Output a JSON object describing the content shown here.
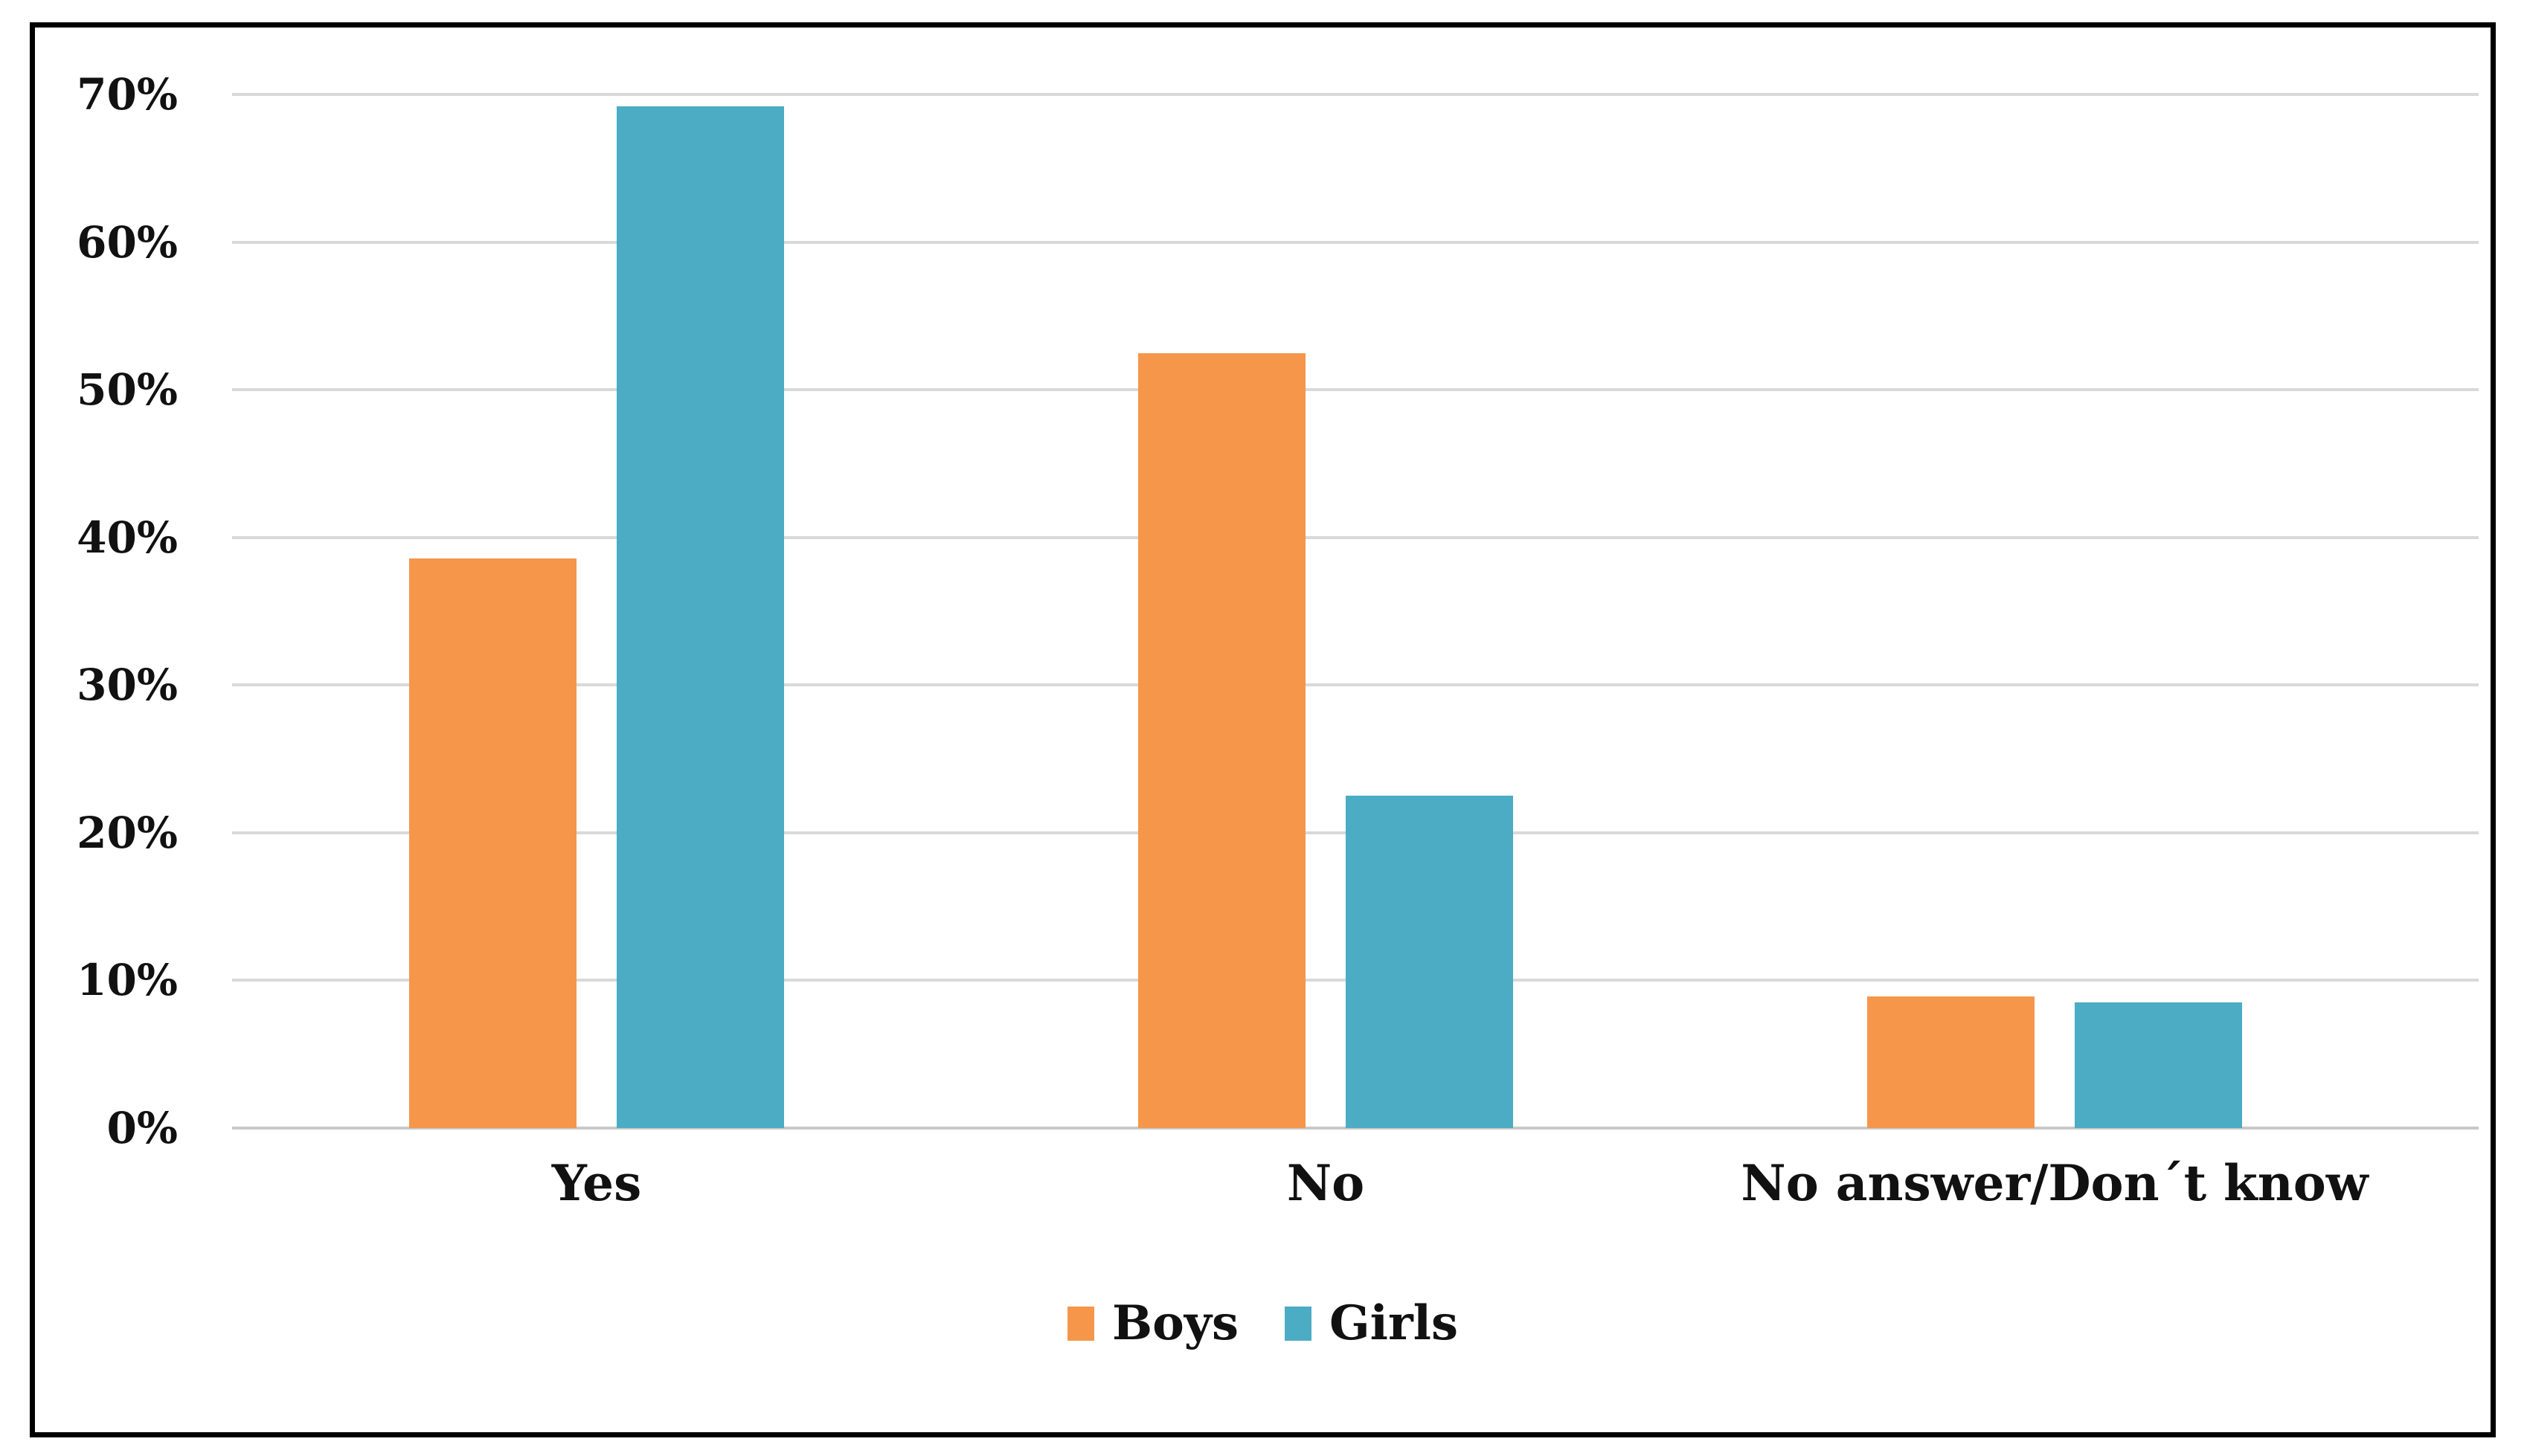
{
  "chart_data": {
    "type": "bar",
    "title": "",
    "categories": [
      "Yes",
      "No",
      "No answer/Don´t know"
    ],
    "series": [
      {
        "name": "Boys",
        "color": "#F5964B",
        "values": [
          38.6,
          52.5,
          8.9
        ]
      },
      {
        "name": "Girls",
        "color": "#4BACC4",
        "values": [
          69.2,
          22.5,
          8.5
        ]
      }
    ],
    "xlabel": "",
    "ylabel": "",
    "ylim": [
      0,
      70
    ],
    "y_tick_step": 10,
    "y_tick_labels": [
      "0%",
      "10%",
      "20%",
      "30%",
      "40%",
      "50%",
      "60%",
      "70%"
    ],
    "grid": true,
    "gridline_color": "#D9D9D9",
    "baseline_color": "#C9C9C9",
    "legend_position": "bottom",
    "legend_labels": [
      "Boys",
      "Girls"
    ]
  },
  "frame": {
    "border_color": "#000000",
    "background": "#FFFFFF"
  }
}
